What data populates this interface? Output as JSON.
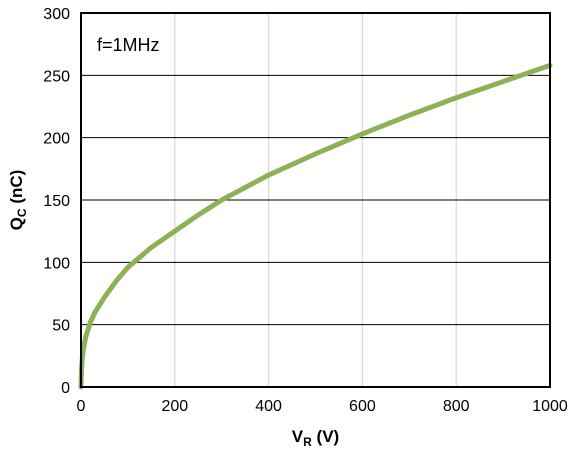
{
  "chart_data": {
    "type": "line",
    "annotation": "f=1MHz",
    "xlabel": {
      "main": "V",
      "sub": "R",
      "unit": " (V)"
    },
    "ylabel": {
      "main": "Q",
      "sub": "C",
      "unit": " (nC)"
    },
    "xlim": [
      0,
      1000
    ],
    "ylim": [
      0,
      300
    ],
    "x_ticks": [
      0,
      200,
      400,
      600,
      800,
      1000
    ],
    "y_ticks": [
      0,
      50,
      100,
      150,
      200,
      250,
      300
    ],
    "grid": {
      "x": true,
      "y": true
    },
    "line_color": "#8db255",
    "grid_color": "#d9d9d9",
    "hgrid_color": "#000000",
    "series": [
      {
        "x": [
          0,
          1,
          3,
          5,
          10,
          20,
          30,
          50,
          75,
          100,
          150,
          200,
          250,
          300,
          400,
          500,
          600,
          700,
          800,
          900,
          1000
        ],
        "values": [
          0,
          14,
          24,
          30,
          40,
          52,
          60,
          72,
          85,
          96,
          112,
          125,
          138,
          150,
          170,
          187,
          203,
          218,
          232,
          245,
          258
        ]
      }
    ]
  }
}
